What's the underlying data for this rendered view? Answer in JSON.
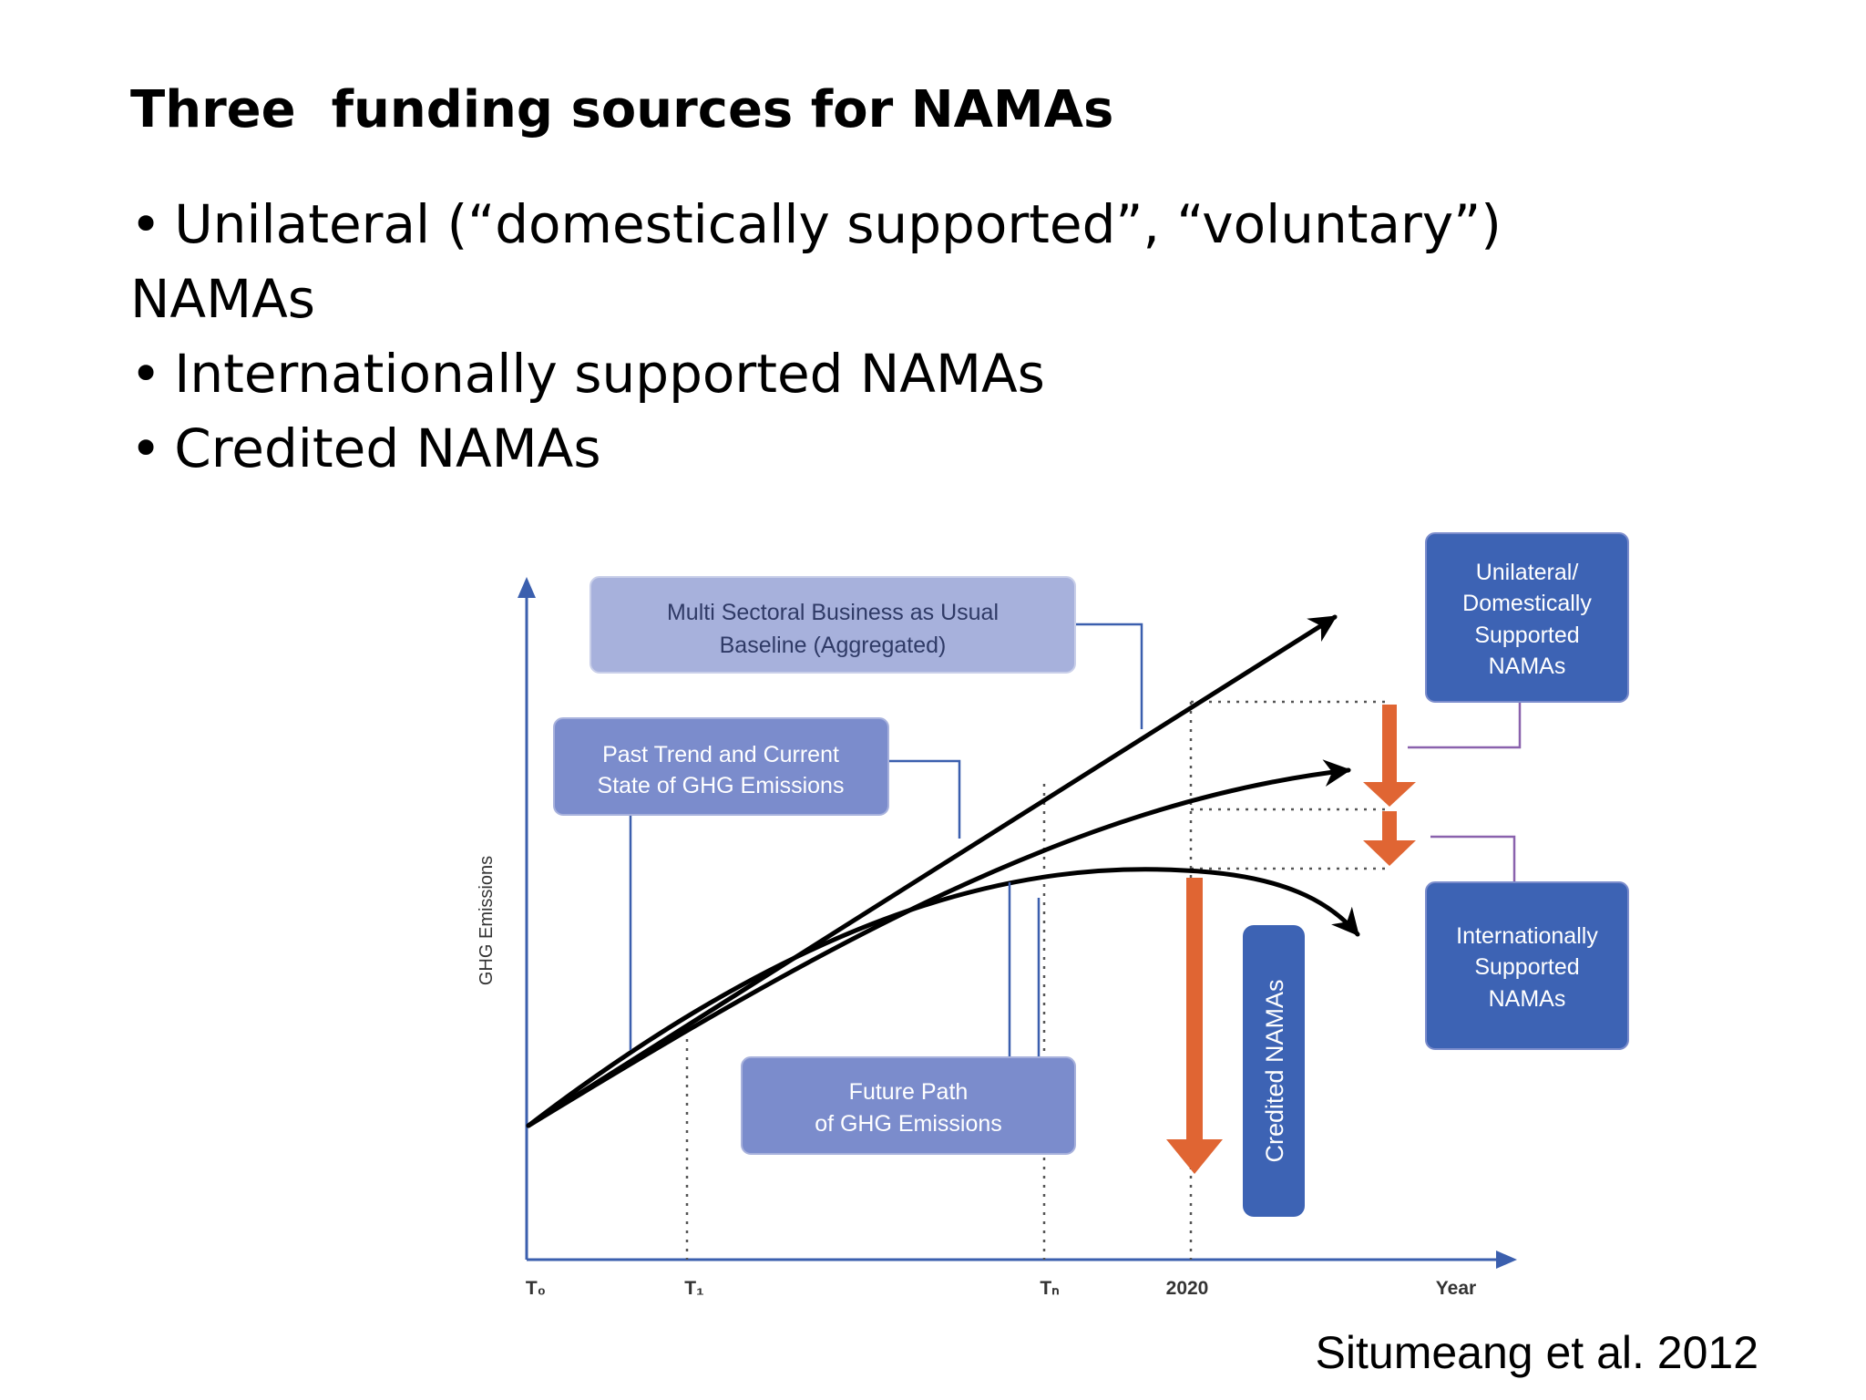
{
  "slide": {
    "title": "Three  funding sources for NAMAs",
    "bullets": [
      "Unilateral (“domestically supported”, “voluntary”) NAMAs",
      "Internationally supported NAMAs",
      "Credited NAMAs"
    ],
    "bullet_glyph": "•",
    "citation": "Situmeang et al. 2012"
  },
  "diagram": {
    "y_axis_label": "GHG Emissions",
    "x_ticks": [
      "T₀",
      "T₁",
      "Tₙ",
      "2020",
      "Year"
    ],
    "boxes": {
      "baseline": [
        "Multi Sectoral Business as Usual",
        "Baseline (Aggregated)"
      ],
      "past_trend": [
        "Past Trend and Current",
        "State of GHG Emissions"
      ],
      "future_path": [
        "Future Path",
        "of GHG Emissions"
      ],
      "unilateral": [
        "Unilateral/",
        "Domestically",
        "Supported",
        "NAMAs"
      ],
      "international": [
        "Internationally",
        "Supported",
        "NAMAs"
      ],
      "credited": "Credited NAMAs"
    },
    "colors": {
      "light_box": "#a7b1dc",
      "mid_box": "#7b8ccc",
      "dark_box": "#3d63b4",
      "axis": "#3b5fae",
      "reduction_arrow": "#e06533",
      "curve": "#000000",
      "connector_purple": "#8a62ad"
    }
  }
}
